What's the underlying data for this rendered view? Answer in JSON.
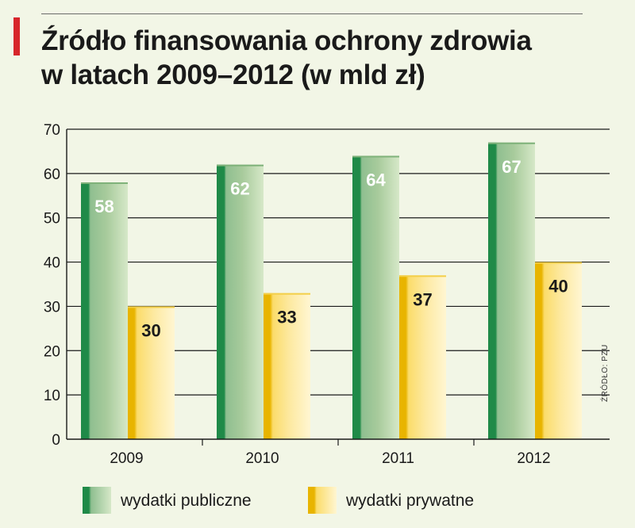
{
  "title_lines": [
    "Źródło finansowania ochrony zdrowia",
    "w latach 2009–2012 (w mld zł)"
  ],
  "source": "ŹRÓDŁO: PZU",
  "colors": {
    "accent": "#d7262b",
    "public_dark": "#1f8a48",
    "public_light": "#b4d2a4",
    "private_dark": "#e8b400",
    "private_light": "#fdeeb0"
  },
  "chart_data": {
    "type": "bar",
    "title": "Źródło finansowania ochrony zdrowia w latach 2009–2012 (w mld zł)",
    "categories": [
      "2009",
      "2010",
      "2011",
      "2012"
    ],
    "series": [
      {
        "name": "wydatki publiczne",
        "values": [
          58,
          62,
          64,
          67
        ]
      },
      {
        "name": "wydatki prywatne",
        "values": [
          30,
          33,
          37,
          40
        ]
      }
    ],
    "yticks": [
      0,
      10,
      20,
      30,
      40,
      50,
      60,
      70
    ],
    "ylim": [
      0,
      70
    ],
    "xlabel": "",
    "ylabel": "",
    "grid": true,
    "legend_position": "bottom"
  }
}
